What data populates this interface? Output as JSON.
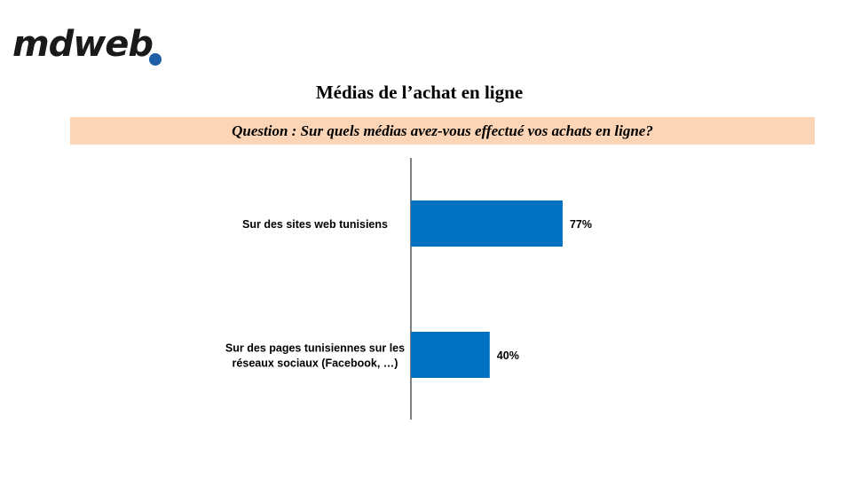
{
  "header": {
    "logo_text": "mdweb",
    "logo_dot_color": "#1f5fa8"
  },
  "title": "Médias de l’achat en ligne",
  "question": "Question : Sur quels médias avez-vous effectué vos achats en ligne?",
  "chart_data": {
    "type": "bar",
    "orientation": "horizontal",
    "title": "Médias de l’achat en ligne",
    "categories": [
      [
        "Sur des sites web tunisiens"
      ],
      [
        "Sur des pages tunisiennes sur les",
        "réseaux sociaux (Facebook, …)"
      ]
    ],
    "values": [
      77,
      40
    ],
    "data_labels": [
      "77%",
      "40%"
    ],
    "unit": "%",
    "xlim": [
      0,
      100
    ],
    "grid": false,
    "legend": "none",
    "bar_color": "#0070c0"
  }
}
